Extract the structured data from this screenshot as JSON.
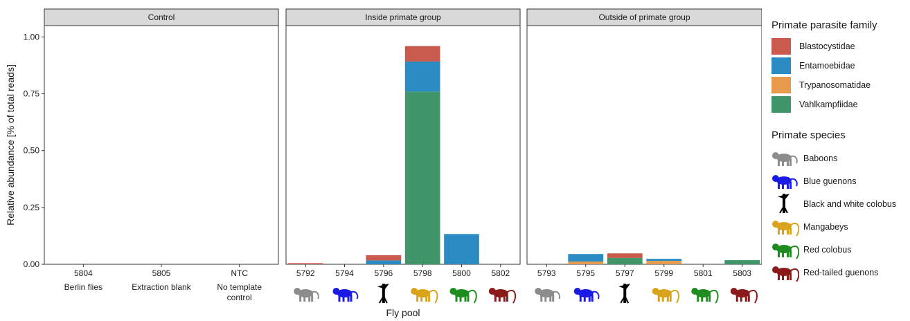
{
  "chart_data": {
    "type": "bar",
    "stacked": true,
    "ylabel": "Relative abundance [% of total reads]",
    "xlabel": "Fly pool",
    "ylim": [
      0,
      1.05
    ],
    "yticks": [
      "0.00",
      "0.25",
      "0.50",
      "0.75",
      "1.00"
    ],
    "ytick_values": [
      0,
      0.25,
      0.5,
      0.75,
      1.0
    ],
    "series_names": [
      "Blastocystidae",
      "Entamoebidae",
      "Trypanosomatidae",
      "Vahlkampfiidae"
    ],
    "stack_order_bottom_to_top": [
      "Vahlkampfiidae",
      "Trypanosomatidae",
      "Entamoebidae",
      "Blastocystidae"
    ],
    "legend_title": "Primate parasite family",
    "colors": {
      "Blastocystidae": "#c85a4e",
      "Entamoebidae": "#2b8cc4",
      "Trypanosomatidae": "#e89b4c",
      "Vahlkampfiidae": "#40966a"
    },
    "panels": [
      {
        "title": "Control",
        "categories": [
          "5804",
          "5805",
          "NTC"
        ],
        "sublabels": [
          [
            "Berlin flies"
          ],
          [
            "Extraction blank"
          ],
          [
            "No template",
            "control"
          ]
        ],
        "species": [
          "",
          "",
          ""
        ],
        "values": {
          "Blastocystidae": [
            0,
            0,
            0
          ],
          "Entamoebidae": [
            0,
            0,
            0
          ],
          "Trypanosomatidae": [
            0,
            0,
            0
          ],
          "Vahlkampfiidae": [
            0,
            0,
            0
          ]
        }
      },
      {
        "title": "Inside primate group",
        "categories": [
          "5792",
          "5794",
          "5796",
          "5798",
          "5800",
          "5802"
        ],
        "species": [
          "Baboons",
          "Blue guenons",
          "Black and white colobus",
          "Mangabeys",
          "Red colobus",
          "Red-tailed guenons"
        ],
        "values": {
          "Blastocystidae": [
            0.005,
            0,
            0.023,
            0.068,
            0,
            0
          ],
          "Entamoebidae": [
            0,
            0,
            0.017,
            0.132,
            0.133,
            0
          ],
          "Trypanosomatidae": [
            0,
            0,
            0,
            0,
            0,
            0
          ],
          "Vahlkampfiidae": [
            0,
            0,
            0,
            0.76,
            0,
            0
          ]
        }
      },
      {
        "title": "Outside of primate group",
        "categories": [
          "5793",
          "5795",
          "5797",
          "5799",
          "5801",
          "5803"
        ],
        "species": [
          "Baboons",
          "Blue guenons",
          "Black and white colobus",
          "Mangabeys",
          "Red colobus",
          "Red-tailed guenons"
        ],
        "values": {
          "Blastocystidae": [
            0,
            0,
            0.02,
            0,
            0,
            0
          ],
          "Entamoebidae": [
            0,
            0.033,
            0,
            0.009,
            0,
            0
          ],
          "Trypanosomatidae": [
            0,
            0.012,
            0,
            0.015,
            0,
            0
          ],
          "Vahlkampfiidae": [
            0,
            0,
            0.028,
            0,
            0,
            0.018
          ]
        }
      }
    ],
    "species_legend": {
      "title": "Primate species",
      "items": [
        {
          "name": "Baboons",
          "color": "#8c8c8c",
          "icon": "baboon-icon"
        },
        {
          "name": "Blue guenons",
          "color": "#1a1ae6",
          "icon": "blue-guenon-icon"
        },
        {
          "name": "Black and white colobus",
          "color": "#000000",
          "icon": "black-white-colobus-icon"
        },
        {
          "name": "Mangabeys",
          "color": "#d9a41c",
          "icon": "mangabey-icon"
        },
        {
          "name": "Red colobus",
          "color": "#1e8c1e",
          "icon": "red-colobus-icon"
        },
        {
          "name": "Red-tailed guenons",
          "color": "#8b1a1a",
          "icon": "red-tailed-guenon-icon"
        }
      ]
    }
  }
}
